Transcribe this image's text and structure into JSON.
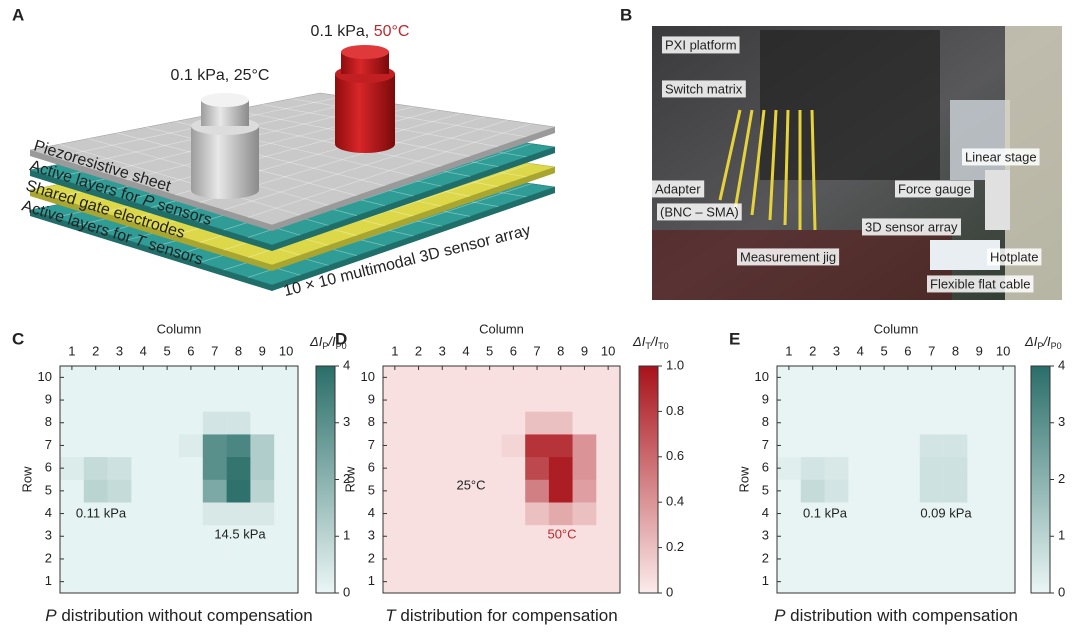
{
  "panel_a": {
    "label": "A",
    "weights": [
      {
        "parts": [
          "0.1 kPa, 25°C"
        ]
      },
      {
        "parts": [
          "0.1 kPa, ",
          "50°C"
        ]
      }
    ],
    "layers": [
      {
        "pre": "Piezoresistive sheet",
        "var": "",
        "post": ""
      },
      {
        "pre": "Active layers for ",
        "var": "P",
        "post": " sensors"
      },
      {
        "pre": "Shared gate electrodes",
        "var": "",
        "post": ""
      },
      {
        "pre": "Active layers for ",
        "var": "T",
        "post": " sensors"
      }
    ],
    "array_label": "10 × 10 multimodal 3D sensor array"
  },
  "panel_b": {
    "label": "B",
    "callouts": [
      "PXI platform",
      "Switch matrix",
      "Adapter",
      "(BNC – SMA)",
      "Linear stage",
      "Force gauge",
      "3D sensor array",
      "Measurement jig",
      "Hotplate",
      "Flexible flat cable"
    ]
  },
  "chart_data": [
    {
      "type": "heatmap",
      "panel_label": "C",
      "title_var": "P",
      "title": " distribution without compensation",
      "xlabel": "Column",
      "ylabel": "Row",
      "xlim": [
        0.5,
        10.5
      ],
      "ylim": [
        0.5,
        10.5
      ],
      "xticks": [
        1,
        2,
        3,
        4,
        5,
        6,
        7,
        8,
        9,
        10
      ],
      "yticks": [
        1,
        2,
        3,
        4,
        5,
        6,
        7,
        8,
        9,
        10
      ],
      "zlim": [
        0,
        4
      ],
      "colorbar_ticks": [
        0,
        1,
        2,
        3,
        4
      ],
      "colorbar_label_parts": [
        "ΔI",
        "P",
        "/I",
        "P0"
      ],
      "colors": [
        "#eaf6f5",
        "#2a6e69"
      ],
      "z": [
        [
          0.1,
          0.1,
          0.1,
          0.1,
          0.1,
          0.1,
          0.1,
          0.1,
          0.1,
          0.1
        ],
        [
          0.1,
          0.1,
          0.1,
          0.1,
          0.1,
          0.1,
          0.1,
          0.1,
          0.1,
          0.1
        ],
        [
          0.1,
          0.1,
          0.1,
          0.1,
          0.1,
          0.1,
          0.1,
          0.1,
          0.1,
          0.1
        ],
        [
          0.1,
          0.1,
          0.1,
          0.1,
          0.1,
          0.1,
          0.4,
          0.4,
          0.4,
          0.1
        ],
        [
          0.1,
          1.0,
          0.8,
          0.1,
          0.1,
          0.1,
          2.3,
          3.9,
          1.0,
          0.1
        ],
        [
          0.3,
          0.8,
          0.6,
          0.1,
          0.1,
          0.1,
          3.0,
          3.8,
          1.2,
          0.1
        ],
        [
          0.1,
          0.1,
          0.1,
          0.1,
          0.1,
          0.3,
          3.0,
          3.3,
          1.2,
          0.1
        ],
        [
          0.1,
          0.1,
          0.1,
          0.1,
          0.1,
          0.1,
          0.5,
          0.5,
          0.1,
          0.1
        ],
        [
          0.1,
          0.1,
          0.1,
          0.1,
          0.1,
          0.1,
          0.1,
          0.1,
          0.1,
          0.1
        ],
        [
          0.1,
          0.1,
          0.1,
          0.1,
          0.1,
          0.1,
          0.1,
          0.1,
          0.1,
          0.1
        ]
      ],
      "annotations": [
        {
          "text": "0.11 kPa",
          "color": "#222222"
        },
        {
          "text": "14.5 kPa",
          "color": "#222222"
        }
      ]
    },
    {
      "type": "heatmap",
      "panel_label": "D",
      "title_var": "T",
      "title": " distribution for compensation",
      "xlabel": "Column",
      "ylabel": "Row",
      "xlim": [
        0.5,
        10.5
      ],
      "ylim": [
        0.5,
        10.5
      ],
      "xticks": [
        1,
        2,
        3,
        4,
        5,
        6,
        7,
        8,
        9,
        10
      ],
      "yticks": [
        1,
        2,
        3,
        4,
        5,
        6,
        7,
        8,
        9,
        10
      ],
      "zlim": [
        0,
        1
      ],
      "colorbar_ticks": [
        0,
        0.2,
        0.4,
        0.6,
        0.8,
        {
          "value": 1,
          "label": "1.0"
        }
      ],
      "colorbar_label_parts": [
        "ΔI",
        "T",
        "/I",
        "T0"
      ],
      "colors": [
        "#fcebeb",
        "#a8121a"
      ],
      "z": [
        [
          0.05,
          0.05,
          0.05,
          0.05,
          0.05,
          0.05,
          0.05,
          0.05,
          0.05,
          0.05
        ],
        [
          0.05,
          0.05,
          0.05,
          0.05,
          0.05,
          0.05,
          0.05,
          0.05,
          0.05,
          0.05
        ],
        [
          0.05,
          0.05,
          0.05,
          0.05,
          0.05,
          0.05,
          0.05,
          0.05,
          0.05,
          0.05
        ],
        [
          0.05,
          0.05,
          0.05,
          0.05,
          0.05,
          0.05,
          0.2,
          0.3,
          0.2,
          0.05
        ],
        [
          0.05,
          0.05,
          0.05,
          0.05,
          0.05,
          0.05,
          0.5,
          0.95,
          0.35,
          0.05
        ],
        [
          0.05,
          0.05,
          0.05,
          0.05,
          0.05,
          0.05,
          0.75,
          0.95,
          0.4,
          0.05
        ],
        [
          0.05,
          0.05,
          0.05,
          0.05,
          0.05,
          0.1,
          0.85,
          0.85,
          0.4,
          0.05
        ],
        [
          0.05,
          0.05,
          0.05,
          0.05,
          0.05,
          0.05,
          0.2,
          0.2,
          0.05,
          0.05
        ],
        [
          0.05,
          0.05,
          0.05,
          0.05,
          0.05,
          0.05,
          0.05,
          0.05,
          0.05,
          0.05
        ],
        [
          0.05,
          0.05,
          0.05,
          0.05,
          0.05,
          0.05,
          0.05,
          0.05,
          0.05,
          0.05
        ]
      ],
      "annotations": [
        {
          "text": "25°C",
          "color": "#222222"
        },
        {
          "text": "50°C",
          "color": "#c0272d"
        }
      ]
    },
    {
      "type": "heatmap",
      "panel_label": "E",
      "title_var": "P",
      "title": " distribution with compensation",
      "xlabel": "Column",
      "ylabel": "Row",
      "xlim": [
        0.5,
        10.5
      ],
      "ylim": [
        0.5,
        10.5
      ],
      "xticks": [
        1,
        2,
        3,
        4,
        5,
        6,
        7,
        8,
        9,
        10
      ],
      "yticks": [
        1,
        2,
        3,
        4,
        5,
        6,
        7,
        8,
        9,
        10
      ],
      "zlim": [
        0,
        4
      ],
      "colorbar_ticks": [
        0,
        1,
        2,
        3,
        4
      ],
      "colorbar_label_parts": [
        "ΔI",
        "P",
        "/I",
        "P0"
      ],
      "colors": [
        "#eaf6f5",
        "#2a6e69"
      ],
      "z": [
        [
          0.05,
          0.05,
          0.05,
          0.05,
          0.05,
          0.05,
          0.05,
          0.05,
          0.05,
          0.05
        ],
        [
          0.05,
          0.05,
          0.05,
          0.05,
          0.05,
          0.05,
          0.05,
          0.05,
          0.05,
          0.05
        ],
        [
          0.05,
          0.05,
          0.05,
          0.05,
          0.05,
          0.05,
          0.05,
          0.05,
          0.05,
          0.05
        ],
        [
          0.05,
          0.05,
          0.05,
          0.05,
          0.05,
          0.05,
          0.05,
          0.05,
          0.05,
          0.05
        ],
        [
          0.05,
          0.8,
          0.5,
          0.05,
          0.05,
          0.05,
          0.6,
          0.6,
          0.05,
          0.05
        ],
        [
          0.2,
          0.5,
          0.4,
          0.05,
          0.05,
          0.05,
          0.6,
          0.6,
          0.05,
          0.05
        ],
        [
          0.05,
          0.05,
          0.05,
          0.05,
          0.05,
          0.05,
          0.5,
          0.5,
          0.05,
          0.05
        ],
        [
          0.05,
          0.05,
          0.05,
          0.05,
          0.05,
          0.05,
          0.05,
          0.05,
          0.05,
          0.05
        ],
        [
          0.05,
          0.05,
          0.05,
          0.05,
          0.05,
          0.05,
          0.05,
          0.05,
          0.05,
          0.05
        ],
        [
          0.05,
          0.05,
          0.05,
          0.05,
          0.05,
          0.05,
          0.05,
          0.05,
          0.05,
          0.05
        ]
      ],
      "annotations": [
        {
          "text": "0.1 kPa",
          "color": "#222222"
        },
        {
          "text": "0.09 kPa",
          "color": "#222222"
        }
      ]
    }
  ]
}
